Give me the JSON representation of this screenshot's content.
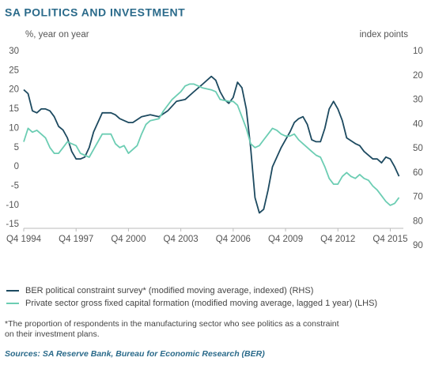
{
  "chart_data": {
    "type": "line",
    "title": "SA POLITICS AND INVESTMENT",
    "ylabel": "%, year on year",
    "y2label": "index points",
    "footnote": [
      "*The proportion of respondents in the manufacturing sector who see politics as a constraint",
      "on their investment plans."
    ],
    "source": "Sources: SA Reserve Bank, Bureau for Economic Research (BER)",
    "xlim": [
      1994.75,
      2016.5
    ],
    "xticks": [
      {
        "value": 1994.75,
        "label": "Q4 1994"
      },
      {
        "value": 1997.75,
        "label": "Q4 1997"
      },
      {
        "value": 2000.75,
        "label": "Q4 2000"
      },
      {
        "value": 2003.75,
        "label": "Q4 2003"
      },
      {
        "value": 2006.75,
        "label": "Q4 2006"
      },
      {
        "value": 2009.75,
        "label": "Q4 2009"
      },
      {
        "value": 2012.75,
        "label": "Q4 2012"
      },
      {
        "value": 2015.75,
        "label": "Q4 2015"
      }
    ],
    "ylim": [
      -20.5,
      30
    ],
    "yticks": [
      30,
      25,
      20,
      15,
      10,
      5,
      0,
      -5,
      -10,
      -15
    ],
    "y2lim": [
      10,
      90
    ],
    "y2_inverted": true,
    "y2ticks": [
      10,
      20,
      30,
      40,
      50,
      60,
      70,
      80,
      90
    ],
    "series": [
      {
        "name": "BER political constraint survey* (modified moving average, indexed) (RHS)",
        "color": "#1d4a60",
        "axis": "y2",
        "x": [
          1994.75,
          1995.0,
          1995.25,
          1995.5,
          1995.75,
          1996.0,
          1996.25,
          1996.5,
          1996.75,
          1997.0,
          1997.25,
          1997.5,
          1997.75,
          1998.0,
          1998.25,
          1998.5,
          1998.75,
          1999.25,
          1999.75,
          2000.0,
          2000.25,
          2000.75,
          2001.0,
          2001.5,
          2002.0,
          2002.5,
          2003.0,
          2003.5,
          2004.0,
          2004.5,
          2005.0,
          2005.5,
          2005.75,
          2006.0,
          2006.25,
          2006.5,
          2006.75,
          2007.0,
          2007.25,
          2007.5,
          2007.75,
          2008.0,
          2008.25,
          2008.5,
          2008.75,
          2009.0,
          2009.5,
          2010.0,
          2010.25,
          2010.5,
          2010.75,
          2011.0,
          2011.25,
          2011.5,
          2011.75,
          2012.0,
          2012.25,
          2012.5,
          2012.75,
          2013.0,
          2013.25,
          2013.75,
          2014.0,
          2014.25,
          2014.75,
          2015.0,
          2015.25,
          2015.5,
          2015.75,
          2016.0,
          2016.25
        ],
        "values": [
          25.8,
          27.4,
          34.5,
          35.3,
          33.7,
          33.7,
          34.5,
          36.9,
          40.9,
          42.4,
          45.6,
          51.2,
          54.3,
          54.3,
          53.5,
          49.6,
          43.2,
          35.3,
          35.3,
          36.1,
          37.7,
          39.3,
          39.3,
          36.9,
          36.1,
          36.9,
          34.5,
          30.6,
          29.8,
          26.6,
          23.5,
          20.3,
          21.9,
          26.6,
          29.8,
          31.4,
          29.0,
          22.7,
          25.0,
          33.7,
          49.6,
          70.2,
          76.5,
          75.0,
          67.0,
          57.5,
          49.6,
          43.2,
          39.3,
          37.7,
          36.9,
          40.1,
          46.4,
          47.2,
          47.2,
          41.7,
          33.7,
          30.6,
          33.7,
          38.5,
          45.6,
          48.0,
          48.8,
          51.2,
          54.3,
          54.3,
          55.9,
          53.5,
          54.3,
          57.5,
          61.4
        ]
      },
      {
        "name": "Private sector gross fixed capital formation (modified moving average, lagged 1 year) (LHS)",
        "color": "#6ccdb3",
        "x": [
          1994.75,
          1995.0,
          1995.25,
          1995.5,
          1995.75,
          1996.0,
          1996.25,
          1996.5,
          1996.75,
          1997.0,
          1997.25,
          1997.5,
          1997.75,
          1998.0,
          1998.25,
          1998.5,
          1998.75,
          1999.0,
          1999.25,
          1999.75,
          2000.0,
          2000.25,
          2000.5,
          2000.75,
          2001.0,
          2001.25,
          2001.5,
          2001.75,
          2002.0,
          2002.5,
          2002.75,
          2003.25,
          2003.75,
          2004.0,
          2004.25,
          2004.5,
          2005.0,
          2005.5,
          2005.75,
          2006.0,
          2006.5,
          2006.75,
          2007.0,
          2007.25,
          2007.5,
          2007.75,
          2008.0,
          2008.25,
          2008.5,
          2008.75,
          2009.0,
          2009.25,
          2009.5,
          2009.75,
          2010.0,
          2010.25,
          2010.5,
          2010.75,
          2011.0,
          2011.25,
          2011.5,
          2011.75,
          2012.0,
          2012.25,
          2012.5,
          2012.75,
          2013.0,
          2013.25,
          2013.5,
          2013.75,
          2014.0,
          2014.25,
          2014.5,
          2014.75,
          2015.0,
          2015.25,
          2015.5,
          2015.75,
          2016.0,
          2016.25
        ],
        "values": [
          6.5,
          10,
          9,
          9.5,
          8.5,
          7.5,
          5,
          3.5,
          3.5,
          5,
          6.5,
          6,
          5.5,
          3.5,
          3,
          2.5,
          4.5,
          6.5,
          8.5,
          8.5,
          6,
          5,
          5.5,
          3.5,
          4.5,
          5.5,
          8.5,
          11,
          12,
          12.5,
          14.5,
          17.5,
          19.5,
          21,
          21.5,
          21.5,
          20.5,
          20,
          19.5,
          17.5,
          17,
          17,
          16,
          13,
          10,
          6,
          5,
          5.5,
          7,
          8.5,
          10,
          9.5,
          8.5,
          8,
          8,
          8.5,
          7,
          6,
          5,
          4,
          3,
          2.5,
          0,
          -3,
          -4.5,
          -4.5,
          -2.5,
          -1.5,
          -2.5,
          -3,
          -2,
          -3,
          -3.5,
          -5,
          -6,
          -7.5,
          -9,
          -10,
          -9.5,
          -8
        ]
      }
    ]
  }
}
